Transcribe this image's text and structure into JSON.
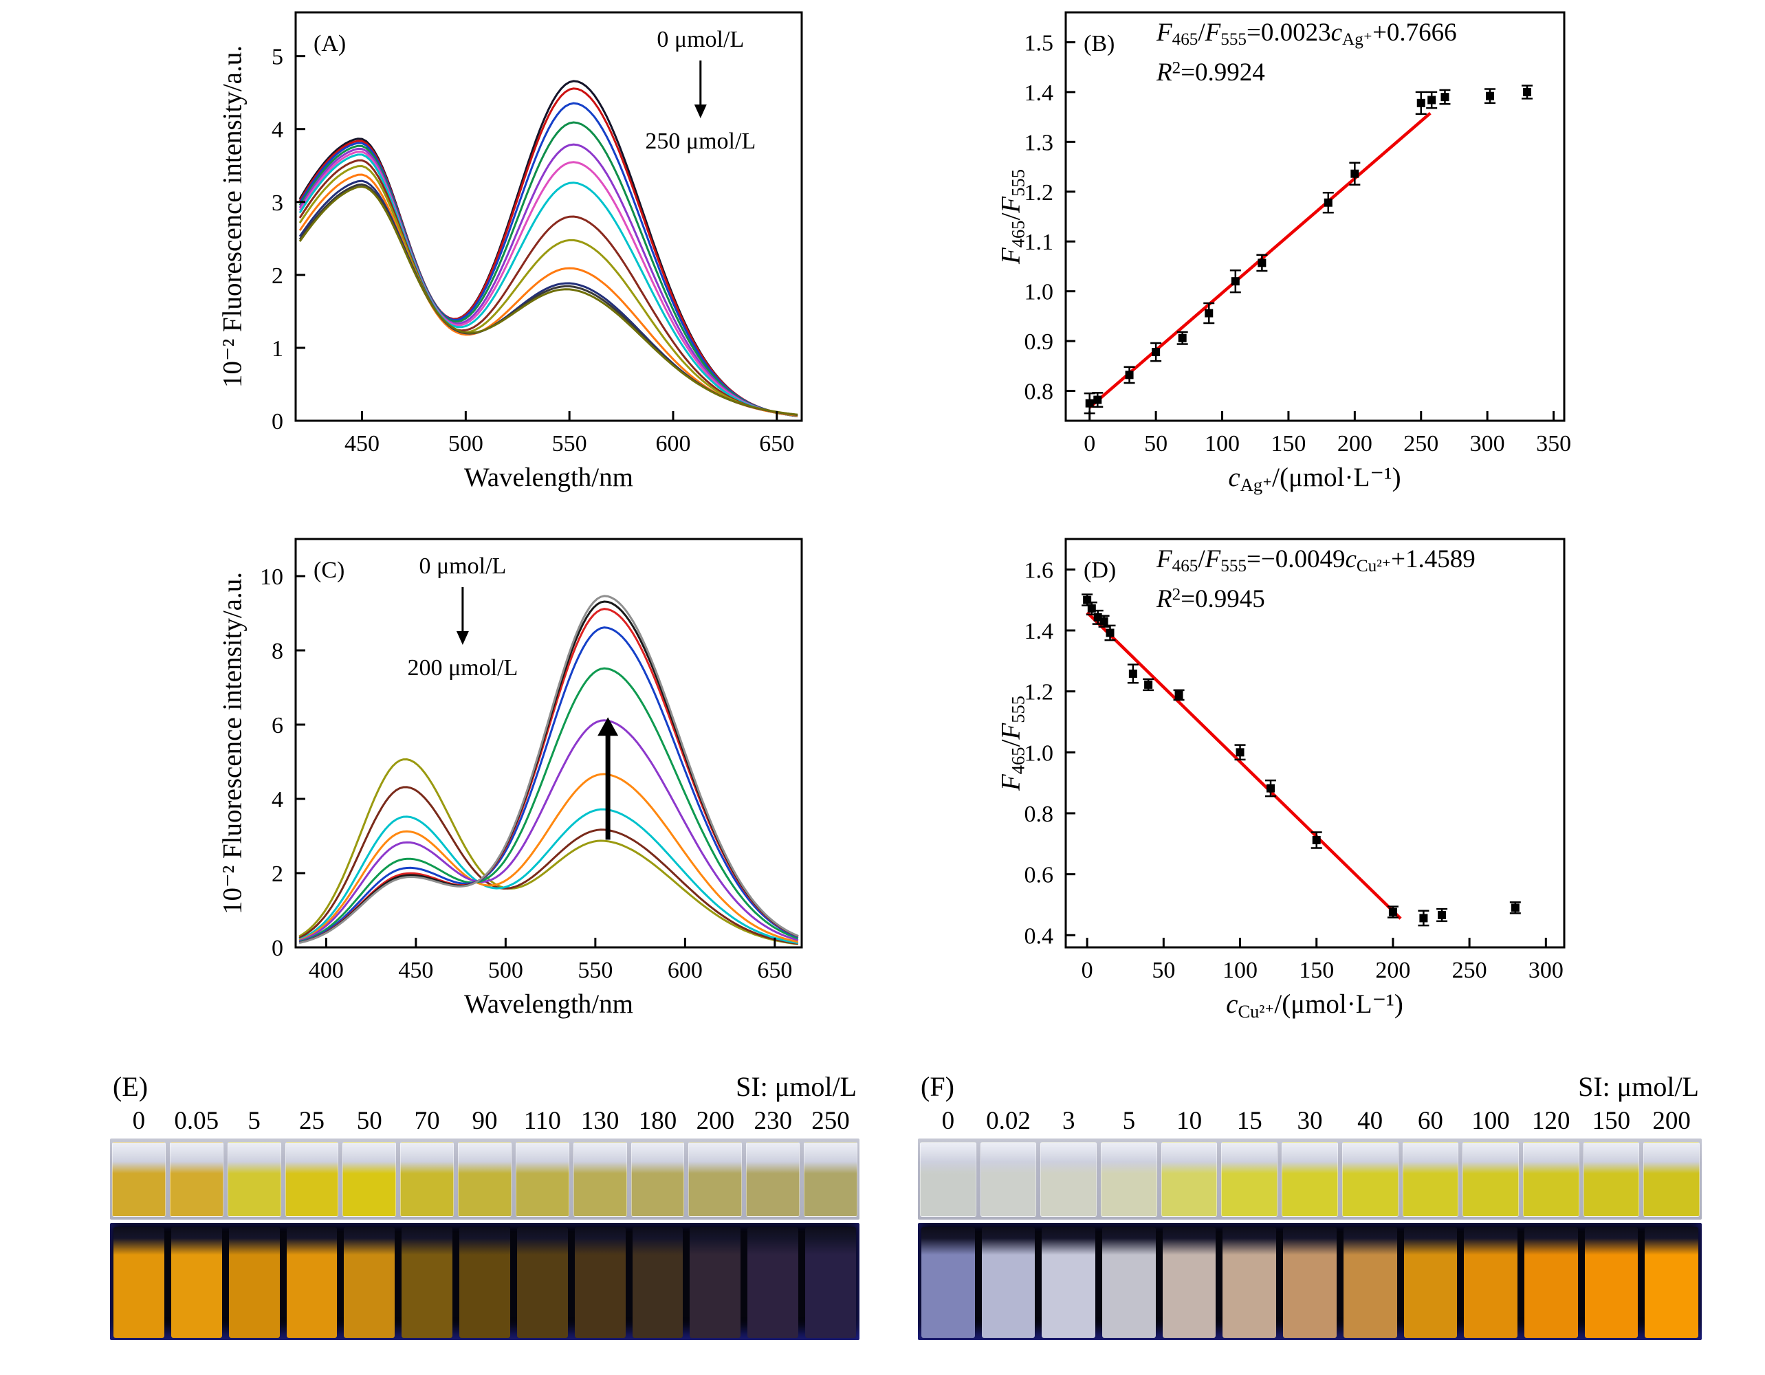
{
  "chart_data": [
    {
      "id": "A",
      "type": "line",
      "tag": "(A)",
      "xlabel": "Wavelength/nm",
      "ylabel": "10⁻² Fluorescence intensity/a.u.",
      "xlim": [
        418,
        662
      ],
      "ylim": [
        0,
        5.6
      ],
      "xticks": [
        450,
        500,
        550,
        600,
        650
      ],
      "yticks": [
        0,
        1,
        2,
        3,
        4,
        5
      ],
      "annotation": {
        "top": "0 μmol/L",
        "bottom": "250 μmol/L",
        "fx": 0.8
      },
      "peak1": {
        "c": 448,
        "wl": 60,
        "wr": 32
      },
      "peak2": {
        "c": 553,
        "wl": 40,
        "wr": 46
      },
      "baseline": {
        "c": 520,
        "wl": 90,
        "wr": 90
      },
      "series": [
        {
          "color": "#14142a",
          "peak1_h": 3.6,
          "peak2_h": 4.22,
          "base_h": 0.5
        },
        {
          "color": "#cc1111",
          "peak1_h": 3.56,
          "peak2_h": 4.1,
          "base_h": 0.52
        },
        {
          "color": "#1540c8",
          "peak1_h": 3.52,
          "peak2_h": 3.88,
          "base_h": 0.54
        },
        {
          "color": "#0f8f4a",
          "peak1_h": 3.47,
          "peak2_h": 3.6,
          "base_h": 0.56
        },
        {
          "color": "#8d38cc",
          "peak1_h": 3.42,
          "peak2_h": 3.28,
          "base_h": 0.58
        },
        {
          "color": "#e04fc0",
          "peak1_h": 3.37,
          "peak2_h": 3.02,
          "base_h": 0.6
        },
        {
          "color": "#00c2cc",
          "peak1_h": 3.32,
          "peak2_h": 2.72,
          "base_h": 0.62
        },
        {
          "color": "#8a2a1e",
          "peak1_h": 3.22,
          "peak2_h": 2.22,
          "base_h": 0.66
        },
        {
          "color": "#9a9a10",
          "peak1_h": 3.12,
          "peak2_h": 1.86,
          "base_h": 0.7
        },
        {
          "color": "#ff7a10",
          "peak1_h": 2.97,
          "peak2_h": 1.42,
          "base_h": 0.76
        },
        {
          "color": "#23307a",
          "peak1_h": 2.84,
          "peak2_h": 1.14,
          "base_h": 0.84
        },
        {
          "color": "#3a3a3a",
          "peak1_h": 2.78,
          "peak2_h": 1.08,
          "base_h": 0.86
        },
        {
          "color": "#6f6f08",
          "peak1_h": 2.74,
          "peak2_h": 1.02,
          "base_h": 0.88
        }
      ]
    },
    {
      "id": "B",
      "type": "scatter",
      "tag": "(B)",
      "xlim": [
        -18,
        358
      ],
      "ylim": [
        0.74,
        1.56
      ],
      "xticks": [
        0,
        50,
        100,
        150,
        200,
        250,
        300,
        350
      ],
      "yticks": [
        0.8,
        0.9,
        1.0,
        1.1,
        1.2,
        1.3,
        1.4,
        1.5
      ],
      "ytick_labels": [
        "0.8",
        "0.9",
        "1.0",
        "1.1",
        "1.2",
        "1.3",
        "1.4",
        "1.5"
      ],
      "points": [
        [
          0,
          0.775,
          0.02
        ],
        [
          6,
          0.782,
          0.014
        ],
        [
          30,
          0.832,
          0.016
        ],
        [
          50,
          0.878,
          0.018
        ],
        [
          70,
          0.906,
          0.012
        ],
        [
          90,
          0.956,
          0.02
        ],
        [
          110,
          1.02,
          0.022
        ],
        [
          130,
          1.057,
          0.016
        ],
        [
          180,
          1.178,
          0.02
        ],
        [
          200,
          1.236,
          0.022
        ],
        [
          250,
          1.378,
          0.022
        ],
        [
          258,
          1.384,
          0.016
        ],
        [
          268,
          1.39,
          0.014
        ],
        [
          302,
          1.392,
          0.014
        ],
        [
          330,
          1.4,
          0.013
        ]
      ],
      "fit_line": {
        "x": [
          0,
          257
        ],
        "y": [
          0.7666,
          1.3577
        ],
        "color": "#ee0000"
      },
      "equation_segments": [
        {
          "t": "F",
          "s": "i"
        },
        {
          "t": "465",
          "s": "sub"
        },
        {
          "t": "/"
        },
        {
          "t": "F",
          "s": "i"
        },
        {
          "t": "555",
          "s": "sub"
        },
        {
          "t": "=0.0023"
        },
        {
          "t": "c",
          "s": "i"
        },
        {
          "t": "Ag⁺",
          "s": "sub"
        },
        {
          "t": "+0.7666"
        }
      ],
      "r2_segments": [
        {
          "t": "R",
          "s": "i"
        },
        {
          "t": "2",
          "s": "sup"
        },
        {
          "t": "=0.9924"
        }
      ],
      "ylabel_segments": [
        {
          "t": "F",
          "s": "i"
        },
        {
          "t": "465",
          "s": "sub"
        },
        {
          "t": "/"
        },
        {
          "t": "F",
          "s": "i"
        },
        {
          "t": "555",
          "s": "sub"
        }
      ],
      "xlabel_segments": [
        {
          "t": "c",
          "s": "i"
        },
        {
          "t": "Ag⁺",
          "s": "sub"
        },
        {
          "t": "/(μmol·L⁻¹)"
        }
      ]
    },
    {
      "id": "C",
      "type": "line",
      "tag": "(C)",
      "xlabel": "Wavelength/nm",
      "ylabel": "10⁻² Fluorescence intensity/a.u.",
      "xlim": [
        383,
        665
      ],
      "ylim": [
        0,
        11
      ],
      "xticks": [
        400,
        450,
        500,
        550,
        600,
        650
      ],
      "yticks": [
        0,
        2,
        4,
        6,
        8,
        10
      ],
      "annotation": {
        "top": "0 μmol/L",
        "bottom": "200 μmol/L",
        "fx": 0.33
      },
      "up_arrow": {
        "x": 557,
        "y0": 2.9,
        "y1": 6.2
      },
      "peak1": {
        "c": 443,
        "wl": 34,
        "wr": 38
      },
      "peak2": {
        "c": 556,
        "wl": 46,
        "wr": 58
      },
      "baseline": {
        "c": 500,
        "wl": 70,
        "wr": 70
      },
      "series": [
        {
          "color": "#9a9a10",
          "peak1_h": 4.8,
          "peak2_h": 2.6,
          "base_h": 0.5
        },
        {
          "color": "#7a2a1a",
          "peak1_h": 4.05,
          "peak2_h": 2.9,
          "base_h": 0.5
        },
        {
          "color": "#00c2cc",
          "peak1_h": 3.25,
          "peak2_h": 3.45,
          "base_h": 0.5
        },
        {
          "color": "#ff8810",
          "peak1_h": 2.85,
          "peak2_h": 4.4,
          "base_h": 0.5
        },
        {
          "color": "#8d38cc",
          "peak1_h": 2.55,
          "peak2_h": 5.85,
          "base_h": 0.5
        },
        {
          "color": "#0f9a50",
          "peak1_h": 2.1,
          "peak2_h": 7.25,
          "base_h": 0.5
        },
        {
          "color": "#1540c8",
          "peak1_h": 1.85,
          "peak2_h": 8.35,
          "base_h": 0.5
        },
        {
          "color": "#dd2222",
          "peak1_h": 1.7,
          "peak2_h": 8.85,
          "base_h": 0.5
        },
        {
          "color": "#1a1a1a",
          "peak1_h": 1.65,
          "peak2_h": 9.05,
          "base_h": 0.5
        },
        {
          "color": "#8f8f8f",
          "peak1_h": 1.6,
          "peak2_h": 9.2,
          "base_h": 0.5
        }
      ]
    },
    {
      "id": "D",
      "type": "scatter",
      "tag": "(D)",
      "xlim": [
        -14,
        312
      ],
      "ylim": [
        0.36,
        1.7
      ],
      "xticks": [
        0,
        50,
        100,
        150,
        200,
        250,
        300
      ],
      "yticks": [
        0.4,
        0.6,
        0.8,
        1.0,
        1.2,
        1.4,
        1.6
      ],
      "ytick_labels": [
        "0.4",
        "0.6",
        "0.8",
        "1.0",
        "1.2",
        "1.4",
        "1.6"
      ],
      "points": [
        [
          0,
          1.5,
          0.018
        ],
        [
          3,
          1.472,
          0.02
        ],
        [
          7,
          1.443,
          0.022
        ],
        [
          11,
          1.43,
          0.018
        ],
        [
          15,
          1.392,
          0.024
        ],
        [
          30,
          1.258,
          0.03
        ],
        [
          40,
          1.222,
          0.018
        ],
        [
          60,
          1.188,
          0.016
        ],
        [
          100,
          1.0,
          0.024
        ],
        [
          120,
          0.882,
          0.026
        ],
        [
          150,
          0.712,
          0.026
        ],
        [
          200,
          0.476,
          0.018
        ],
        [
          220,
          0.456,
          0.024
        ],
        [
          232,
          0.466,
          0.02
        ],
        [
          280,
          0.49,
          0.018
        ]
      ],
      "fit_line": {
        "x": [
          0,
          205
        ],
        "y": [
          1.4589,
          0.4545
        ],
        "color": "#ee0000"
      },
      "equation_segments": [
        {
          "t": "F",
          "s": "i"
        },
        {
          "t": "465",
          "s": "sub"
        },
        {
          "t": "/"
        },
        {
          "t": "F",
          "s": "i"
        },
        {
          "t": "555",
          "s": "sub"
        },
        {
          "t": "=−0.0049"
        },
        {
          "t": "c",
          "s": "i"
        },
        {
          "t": "Cu²⁺",
          "s": "sub"
        },
        {
          "t": "+1.4589"
        }
      ],
      "r2_segments": [
        {
          "t": "R",
          "s": "i"
        },
        {
          "t": "2",
          "s": "sup"
        },
        {
          "t": "=0.9945"
        }
      ],
      "ylabel_segments": [
        {
          "t": "F",
          "s": "i"
        },
        {
          "t": "465",
          "s": "sub"
        },
        {
          "t": "/"
        },
        {
          "t": "F",
          "s": "i"
        },
        {
          "t": "555",
          "s": "sub"
        }
      ],
      "xlabel_segments": [
        {
          "t": "c",
          "s": "i"
        },
        {
          "t": "Cu²⁺",
          "s": "sub"
        },
        {
          "t": "/(μmol·L⁻¹)"
        }
      ]
    }
  ],
  "photos": {
    "E": {
      "tag": "(E)",
      "unit_label": "SI: μmol/L",
      "concentrations": [
        "0",
        "0.05",
        "5",
        "25",
        "50",
        "70",
        "90",
        "110",
        "130",
        "180",
        "200",
        "230",
        "250"
      ],
      "daylight_colors": [
        "#d1a92c",
        "#d3ab2e",
        "#d2c832",
        "#d8c419",
        "#d9c715",
        "#c9b92e",
        "#c3b43a",
        "#bdb04a",
        "#b9ad56",
        "#b5aa5e",
        "#b2a862",
        "#b0a666",
        "#aea668"
      ],
      "uv_colors": [
        "#e2960a",
        "#e59a0c",
        "#d28c0a",
        "#e0940b",
        "#c98a10",
        "#7a5a10",
        "#64490f",
        "#553e14",
        "#4a3518",
        "#40301f",
        "#322636",
        "#2d2240",
        "#282046"
      ]
    },
    "F": {
      "tag": "(F)",
      "unit_label": "SI: μmol/L",
      "concentrations": [
        "0",
        "0.02",
        "3",
        "5",
        "10",
        "15",
        "30",
        "40",
        "60",
        "100",
        "120",
        "150",
        "200"
      ],
      "daylight_colors": [
        "#c9cdc9",
        "#cdd0cb",
        "#d0d2c4",
        "#d2d3b4",
        "#d5d466",
        "#d6d23c",
        "#d5cf2e",
        "#d4cd2a",
        "#d3cb27",
        "#d2c925",
        "#d1c723",
        "#d0c521",
        "#cfc31f"
      ],
      "uv_colors": [
        "#7f84b8",
        "#b4b7d2",
        "#c6c8da",
        "#c2c2cc",
        "#c4b4ac",
        "#c3a892",
        "#c29468",
        "#c58c42",
        "#d6900e",
        "#e18e08",
        "#ea8c05",
        "#f29103",
        "#f79a02"
      ]
    }
  }
}
